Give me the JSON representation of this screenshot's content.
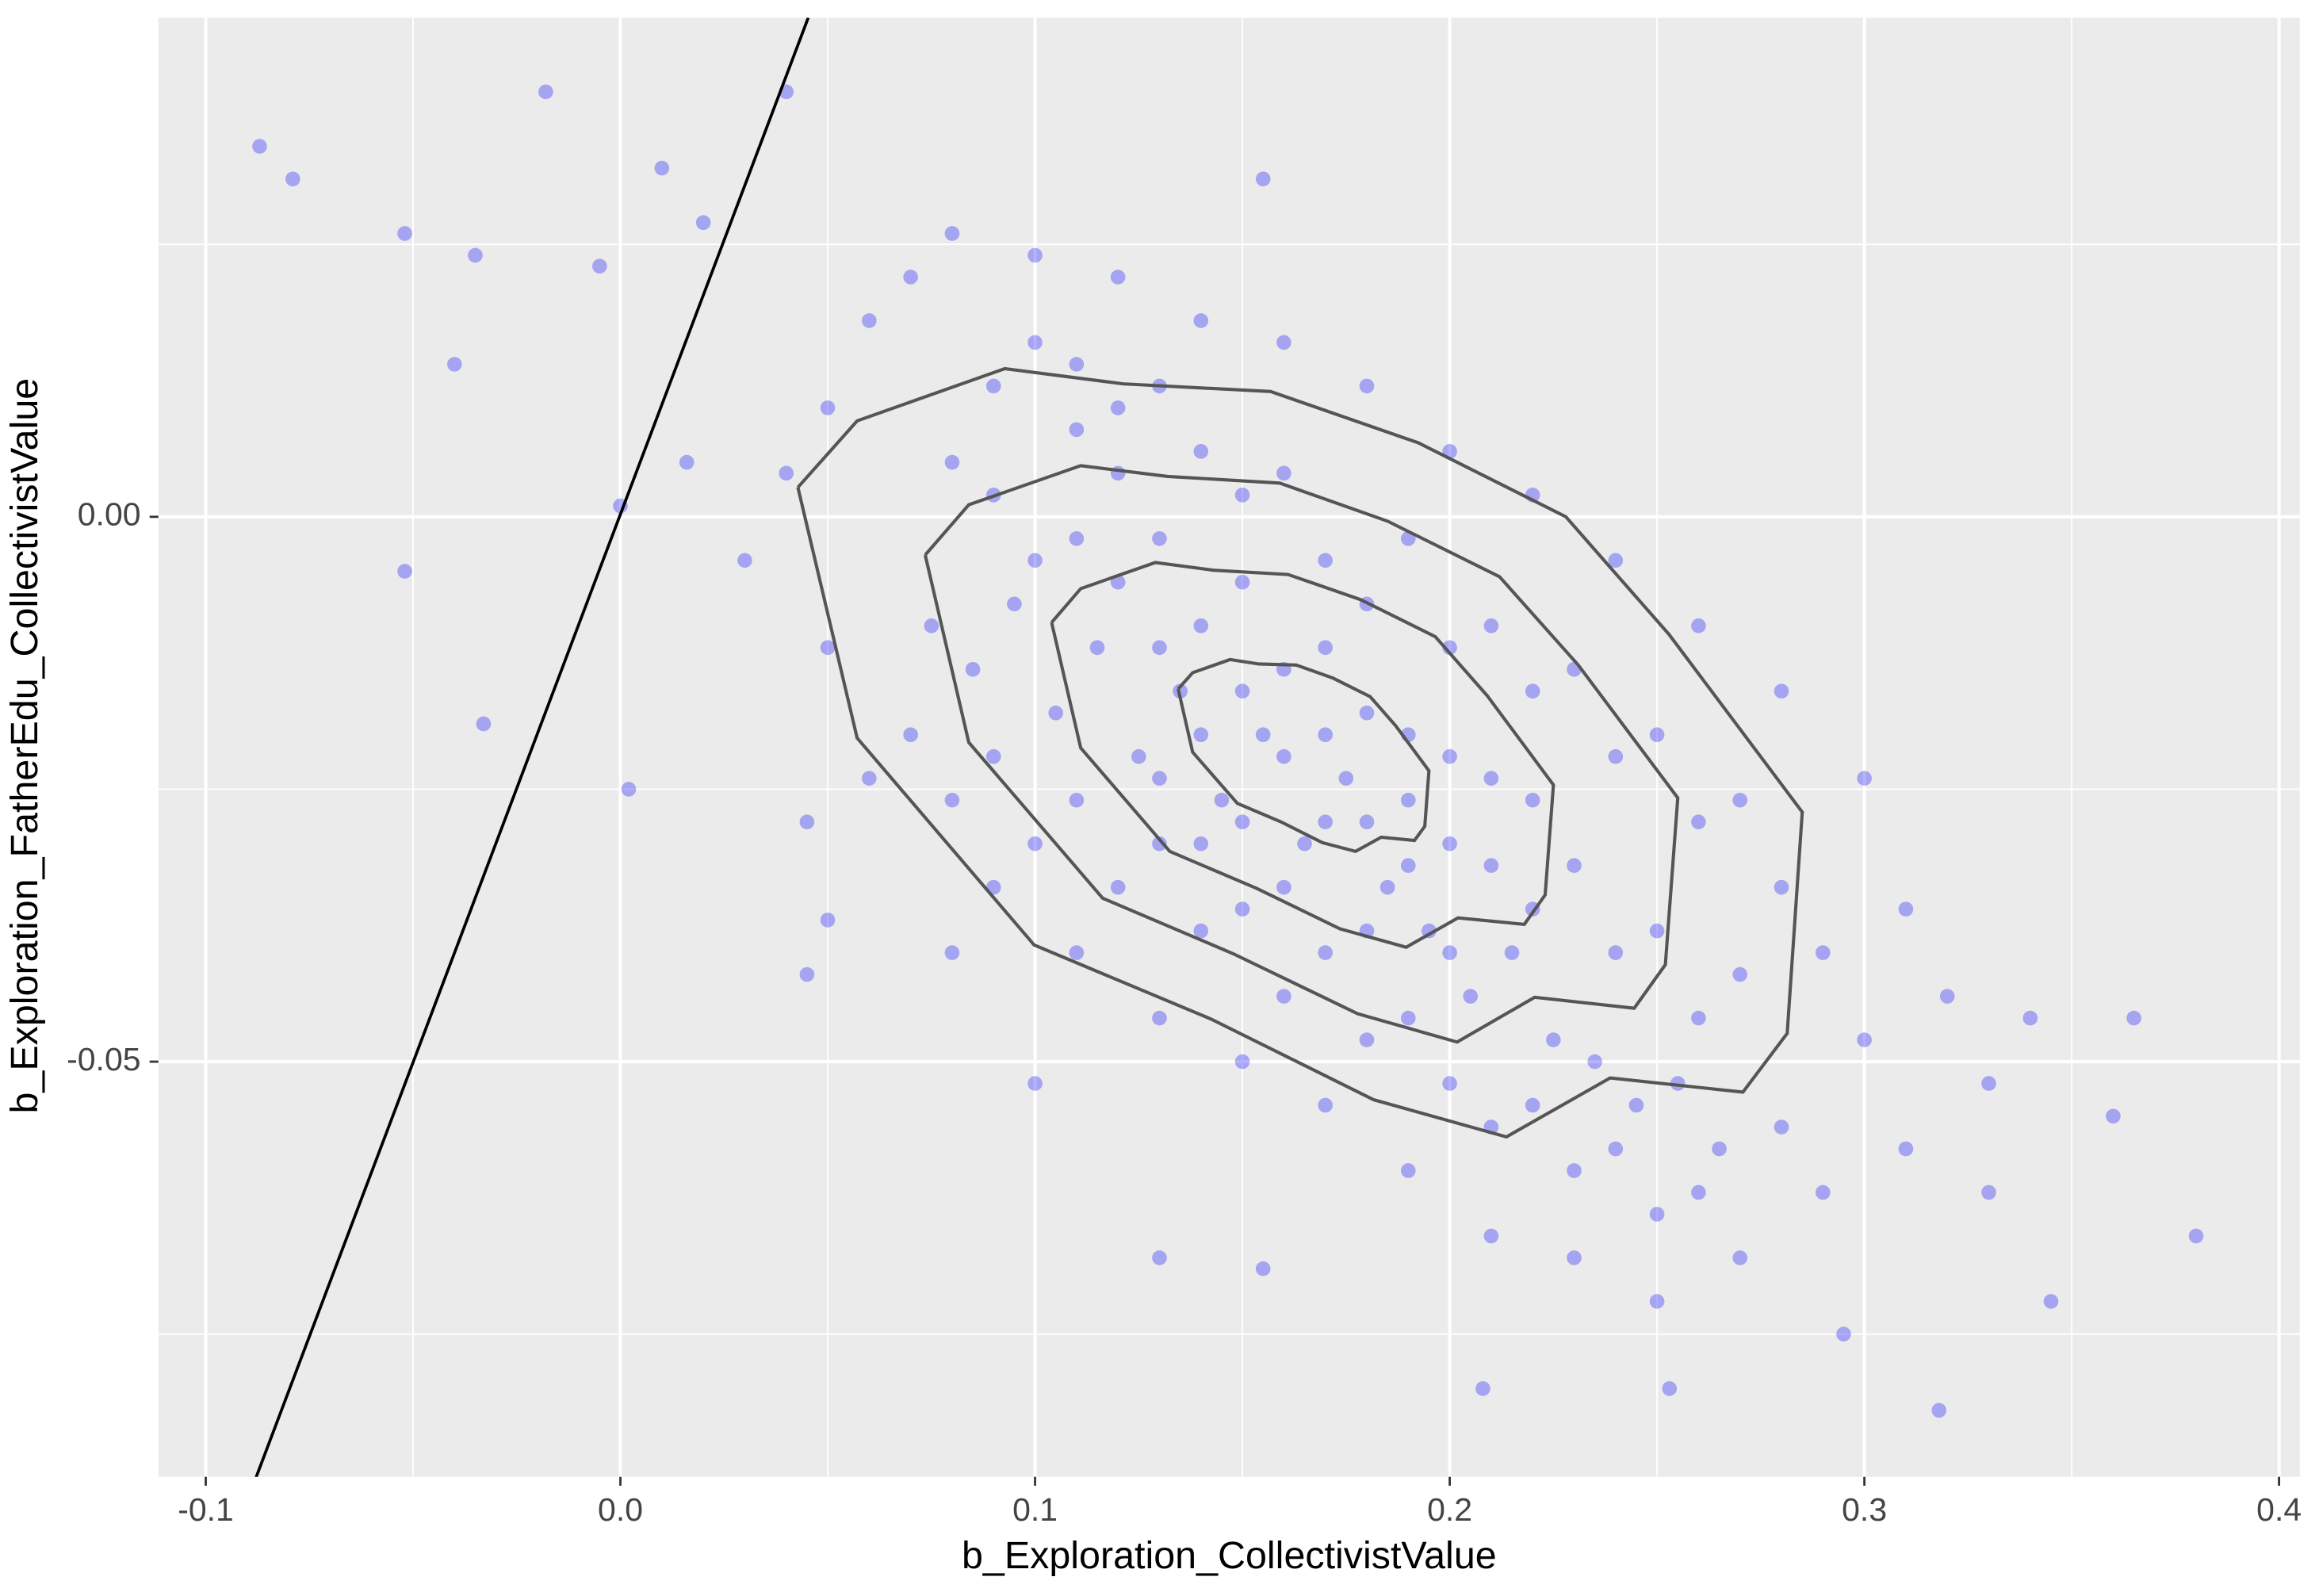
{
  "chart_data": {
    "type": "scatter",
    "x_label": "b_Exploration_CollectivistValue",
    "y_label": "b_Exploration_FatherEdu_CollectivistValue",
    "xlim": [
      -0.1114,
      0.405
    ],
    "ylim": [
      -0.0881,
      0.0458
    ],
    "xticks": [
      -0.1,
      {
        "value": 0,
        "label": "0.0"
      },
      0.1,
      0.2,
      0.3,
      0.4
    ],
    "yticks": [
      {
        "value": -0.05,
        "label": "-0.05"
      },
      {
        "value": 0,
        "label": "0.00"
      }
    ],
    "x_minor_grid": [
      -0.05,
      0.05,
      0.15,
      0.25,
      0.35
    ],
    "y_minor_grid": [
      -0.075,
      -0.025,
      0.025
    ],
    "grid": true,
    "series": [
      {
        "color": "#0000ff",
        "x": [
          0.08,
          0.09,
          0.1,
          0.11,
          0.12,
          0.13,
          0.14,
          0.15,
          0.16,
          0.17,
          0.18,
          0.19,
          0.2,
          0.21,
          0.22,
          0.23,
          0.24,
          0.25,
          0.26,
          0.27,
          0.075,
          0.085,
          0.095,
          0.105,
          0.115,
          0.125,
          0.135,
          0.145,
          0.155,
          0.165,
          0.175,
          0.185,
          0.195,
          0.205,
          0.215,
          0.225,
          0.235,
          0.245,
          0.255,
          0.265,
          0.09,
          0.1,
          0.11,
          0.12,
          0.13,
          0.14,
          0.15,
          0.16,
          0.17,
          0.18,
          0.19,
          0.2,
          0.21,
          0.22,
          0.23,
          0.24,
          0.25,
          0.26,
          0.27,
          0.28,
          0.07,
          0.08,
          0.09,
          0.1,
          0.11,
          0.12,
          0.13,
          0.14,
          0.15,
          0.16,
          0.17,
          0.18,
          0.19,
          0.2,
          0.21,
          0.22,
          0.23,
          0.24,
          0.25,
          0.26,
          0.13,
          0.14,
          0.15,
          0.16,
          0.17,
          0.18,
          0.19,
          0.2,
          0.21,
          0.22,
          0.15,
          0.16,
          0.17,
          0.18,
          0.19,
          0.12,
          0.13,
          0.14,
          0.11,
          0.2,
          0.05,
          0.04,
          0.06,
          0.07,
          0.03,
          0.05,
          0.06,
          0.045,
          0.08,
          0.1,
          0.12,
          0.14,
          0.16,
          0.18,
          0.2,
          0.22,
          0.24,
          0.26,
          0.28,
          0.3,
          0.29,
          0.3,
          0.31,
          0.32,
          0.33,
          0.31,
          0.29,
          0.28,
          0.27,
          0.25,
          0.23,
          0.21,
          0.19,
          0.17,
          0.15,
          0.13,
          0.11,
          0.09,
          0.08,
          0.1,
          -0.087,
          -0.079,
          -0.052,
          -0.018,
          0.04,
          -0.035,
          -0.04,
          -0.052,
          -0.033,
          0.002,
          0.38,
          0.318,
          0.253,
          0.208,
          0.155,
          0.345,
          0.365,
          0.36,
          0.295,
          0.01,
          0.02,
          -0.005,
          0.016,
          0.0,
          0.13,
          0.155,
          0.05,
          0.045,
          0.34,
          0.33
        ],
        "y": [
          0.005,
          0.002,
          -0.004,
          0.008,
          0.004,
          -0.002,
          -0.01,
          -0.006,
          -0.014,
          -0.02,
          -0.018,
          -0.026,
          -0.03,
          -0.024,
          -0.036,
          -0.032,
          -0.04,
          -0.038,
          -0.046,
          -0.042,
          -0.01,
          -0.014,
          -0.008,
          -0.018,
          -0.012,
          -0.022,
          -0.016,
          -0.026,
          -0.02,
          -0.03,
          -0.024,
          -0.034,
          -0.038,
          -0.044,
          -0.04,
          -0.048,
          -0.05,
          -0.054,
          -0.052,
          -0.058,
          0.012,
          0.016,
          0.014,
          0.01,
          0.012,
          0.006,
          0.002,
          0.004,
          -0.004,
          -0.008,
          -0.002,
          -0.012,
          -0.01,
          -0.016,
          -0.014,
          -0.022,
          -0.02,
          -0.028,
          -0.026,
          -0.034,
          -0.02,
          -0.026,
          -0.022,
          -0.03,
          -0.026,
          -0.034,
          -0.03,
          -0.038,
          -0.036,
          -0.044,
          -0.04,
          -0.048,
          -0.046,
          -0.052,
          -0.056,
          -0.054,
          -0.06,
          -0.058,
          -0.064,
          -0.062,
          -0.012,
          -0.02,
          -0.016,
          -0.022,
          -0.012,
          -0.028,
          -0.02,
          -0.022,
          -0.032,
          -0.026,
          -0.028,
          -0.034,
          -0.028,
          -0.038,
          -0.032,
          -0.006,
          -0.024,
          -0.03,
          -0.002,
          -0.04,
          0.01,
          0.004,
          0.018,
          0.022,
          -0.004,
          -0.012,
          -0.024,
          -0.028,
          0.026,
          0.024,
          0.022,
          0.018,
          0.016,
          0.012,
          0.006,
          0.002,
          -0.004,
          -0.01,
          -0.016,
          -0.024,
          -0.04,
          -0.048,
          -0.036,
          -0.044,
          -0.052,
          -0.058,
          -0.062,
          -0.056,
          -0.068,
          -0.072,
          -0.068,
          -0.066,
          -0.06,
          -0.054,
          -0.05,
          -0.046,
          -0.04,
          -0.034,
          -0.04,
          -0.052,
          0.034,
          0.031,
          0.026,
          0.039,
          0.039,
          0.024,
          0.014,
          -0.005,
          -0.019,
          -0.025,
          -0.066,
          -0.082,
          -0.08,
          -0.08,
          0.031,
          -0.072,
          -0.046,
          -0.055,
          -0.075,
          0.032,
          0.027,
          0.023,
          0.005,
          0.001,
          -0.068,
          -0.069,
          -0.037,
          -0.042,
          -0.046,
          -0.062
        ]
      }
    ],
    "contours": {
      "color": "#555555",
      "lines": [
        {
          "x": [
            0.0428,
            0.0571,
            0.0927,
            0.1212,
            0.1568,
            0.1924,
            0.228,
            0.2529,
            0.285,
            0.2814,
            0.2707,
            0.2387,
            0.2137,
            0.1817,
            0.1425,
            0.0998,
            0.0571,
            0.0428
          ],
          "y": [
            0.0027,
            0.0088,
            0.0136,
            0.0122,
            0.0115,
            0.0068,
            0.0,
            -0.0108,
            -0.0271,
            -0.0474,
            -0.0528,
            -0.0515,
            -0.0569,
            -0.0535,
            -0.0461,
            -0.0393,
            -0.0203,
            0.0027
          ]
        },
        {
          "x": [
            0.0735,
            0.084,
            0.111,
            0.132,
            0.159,
            0.185,
            0.212,
            0.231,
            0.255,
            0.252,
            0.2445,
            0.2205,
            0.2018,
            0.1778,
            0.1478,
            0.1163,
            0.084,
            0.0735
          ],
          "y": [
            -0.0035,
            0.0011,
            0.0047,
            0.0037,
            0.0031,
            -0.0004,
            -0.0055,
            -0.0136,
            -0.0258,
            -0.0411,
            -0.0451,
            -0.0441,
            -0.0482,
            -0.0456,
            -0.0401,
            -0.035,
            -0.0207,
            -0.0035
          ]
        },
        {
          "x": [
            0.104,
            0.111,
            0.129,
            0.143,
            0.161,
            0.1785,
            0.1965,
            0.209,
            0.225,
            0.223,
            0.218,
            0.202,
            0.1895,
            0.1735,
            0.1535,
            0.1325,
            0.111,
            0.104
          ],
          "y": [
            -0.0097,
            -0.0066,
            -0.0042,
            -0.0049,
            -0.0053,
            -0.0076,
            -0.011,
            -0.0164,
            -0.0246,
            -0.0347,
            -0.0374,
            -0.0368,
            -0.0395,
            -0.0378,
            -0.0341,
            -0.0307,
            -0.0212,
            -0.0097
          ]
        },
        {
          "x": [
            0.1345,
            0.138,
            0.147,
            0.154,
            0.163,
            0.1718,
            0.1808,
            0.187,
            0.195,
            0.194,
            0.1915,
            0.1835,
            0.1773,
            0.1693,
            0.1593,
            0.1488,
            0.138,
            0.1345
          ],
          "y": [
            -0.0158,
            -0.0143,
            -0.0131,
            -0.0135,
            -0.0136,
            -0.0148,
            -0.0165,
            -0.0192,
            -0.0233,
            -0.0284,
            -0.0297,
            -0.0294,
            -0.0307,
            -0.0299,
            -0.028,
            -0.0263,
            -0.0216,
            -0.0158
          ]
        }
      ]
    },
    "reference_line": {
      "color": "#000000",
      "x": [
        -0.0882,
        0.0453
      ],
      "y": [
        -0.0885,
        0.0458
      ]
    }
  }
}
